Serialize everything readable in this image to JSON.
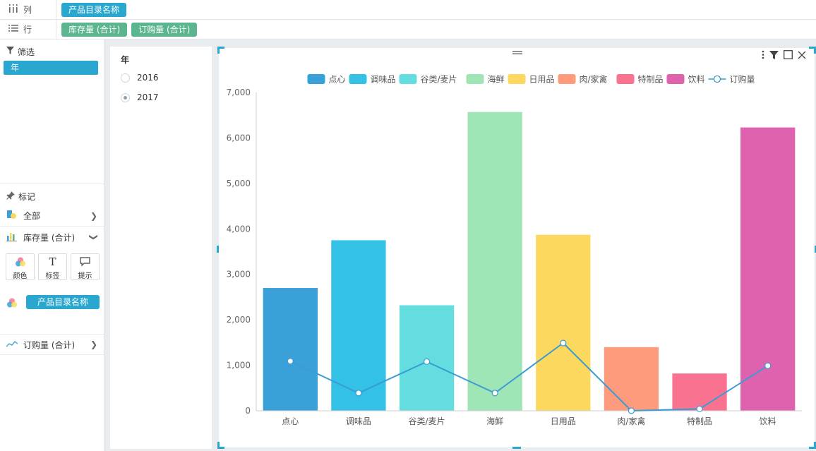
{
  "shelves": {
    "columns": {
      "label": "列",
      "icon": "columns-icon",
      "pill": "产品目录名称"
    },
    "rows": {
      "label": "行",
      "icon": "rows-icon",
      "pills": [
        "库存量 (合计)",
        "订购量 (合计)"
      ]
    }
  },
  "filter_section": {
    "title": "筛选",
    "chip": "年"
  },
  "marks_section": {
    "title": "标记",
    "all_label": "全部",
    "measure1_label": "库存量 (合计)",
    "tools": [
      {
        "label": "颜色",
        "icon": "color-icon"
      },
      {
        "label": "标签",
        "icon": "label-T-icon"
      },
      {
        "label": "提示",
        "icon": "tooltip-icon"
      }
    ],
    "color_field": "产品目录名称",
    "measure2_label": "订购量 (合计)"
  },
  "year_filter": {
    "title": "年",
    "options": [
      {
        "label": "2016",
        "selected": false
      },
      {
        "label": "2017",
        "selected": true
      }
    ]
  },
  "colors": {
    "accent": "#2aa7cf",
    "pill_green": "#5bb58e",
    "line": "#3a9bd5"
  },
  "chart_data": {
    "type": "bar",
    "categories": [
      "点心",
      "调味品",
      "谷类/麦片",
      "海鲜",
      "日用品",
      "肉/家禽",
      "特制品",
      "饮料"
    ],
    "series": [
      {
        "name": "库存量",
        "type": "bar",
        "values": [
          2700,
          3750,
          2320,
          6570,
          3870,
          1400,
          820,
          6230
        ]
      },
      {
        "name": "订购量",
        "type": "line",
        "values": [
          1090,
          390,
          1080,
          390,
          1490,
          0,
          40,
          990
        ]
      }
    ],
    "bar_colors": [
      "#3aa0d8",
      "#33c1e6",
      "#64dde0",
      "#9fe5b6",
      "#fcd95e",
      "#fd9b7c",
      "#f97390",
      "#df62ae"
    ],
    "legend": [
      "点心",
      "调味品",
      "谷类/麦片",
      "海鲜",
      "日用品",
      "肉/家禽",
      "特制品",
      "饮料",
      "订购量"
    ],
    "legend_position": "top",
    "ylim": [
      0,
      7000
    ],
    "yticks": [
      "0",
      "1,000",
      "2,000",
      "3,000",
      "4,000",
      "5,000",
      "6,000",
      "7,000"
    ],
    "title": "",
    "xlabel": "",
    "ylabel": ""
  }
}
